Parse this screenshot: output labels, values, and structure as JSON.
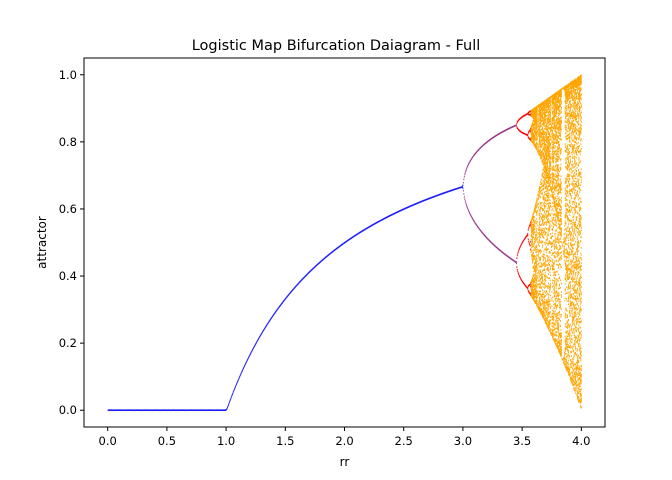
{
  "chart_data": {
    "type": "scatter",
    "title": "Logistic Map Bifurcation Daiagram - Full",
    "xlabel": "rr",
    "ylabel": "attractor",
    "xlim": [
      -0.2,
      4.2
    ],
    "ylim": [
      -0.05,
      1.05
    ],
    "xticks": [
      "0.0",
      "0.5",
      "1.0",
      "1.5",
      "2.0",
      "2.5",
      "3.0",
      "3.5",
      "4.0"
    ],
    "yticks": [
      "0.0",
      "0.2",
      "0.4",
      "0.6",
      "0.8",
      "1.0"
    ],
    "grid": false,
    "legend": "none",
    "series": [
      {
        "color": "#1f1fff",
        "r_range": [
          0.0,
          3.0
        ],
        "description_period": 1
      },
      {
        "color": "#9a3a8a",
        "r_range": [
          3.0,
          3.449
        ],
        "description_period": 2
      },
      {
        "color": "#ff0000",
        "r_range": [
          3.449,
          3.57
        ],
        "description_period": 4
      },
      {
        "color": "#ffa500",
        "r_range": [
          3.57,
          4.0
        ],
        "description_period": "chaos"
      }
    ],
    "sample_points": [
      {
        "x": 0.5,
        "y": 0.0
      },
      {
        "x": 1.5,
        "y": 0.333
      },
      {
        "x": 2.0,
        "y": 0.5
      },
      {
        "x": 2.5,
        "y": 0.6
      },
      {
        "x": 3.0,
        "y": 0.667
      },
      {
        "x": 3.2,
        "y": 0.799
      },
      {
        "x": 3.2,
        "y": 0.513
      },
      {
        "x": 3.5,
        "y": 0.875
      },
      {
        "x": 3.5,
        "y": 0.383
      },
      {
        "x": 4.0,
        "y": 1.0
      },
      {
        "x": 4.0,
        "y": 0.0
      }
    ]
  }
}
